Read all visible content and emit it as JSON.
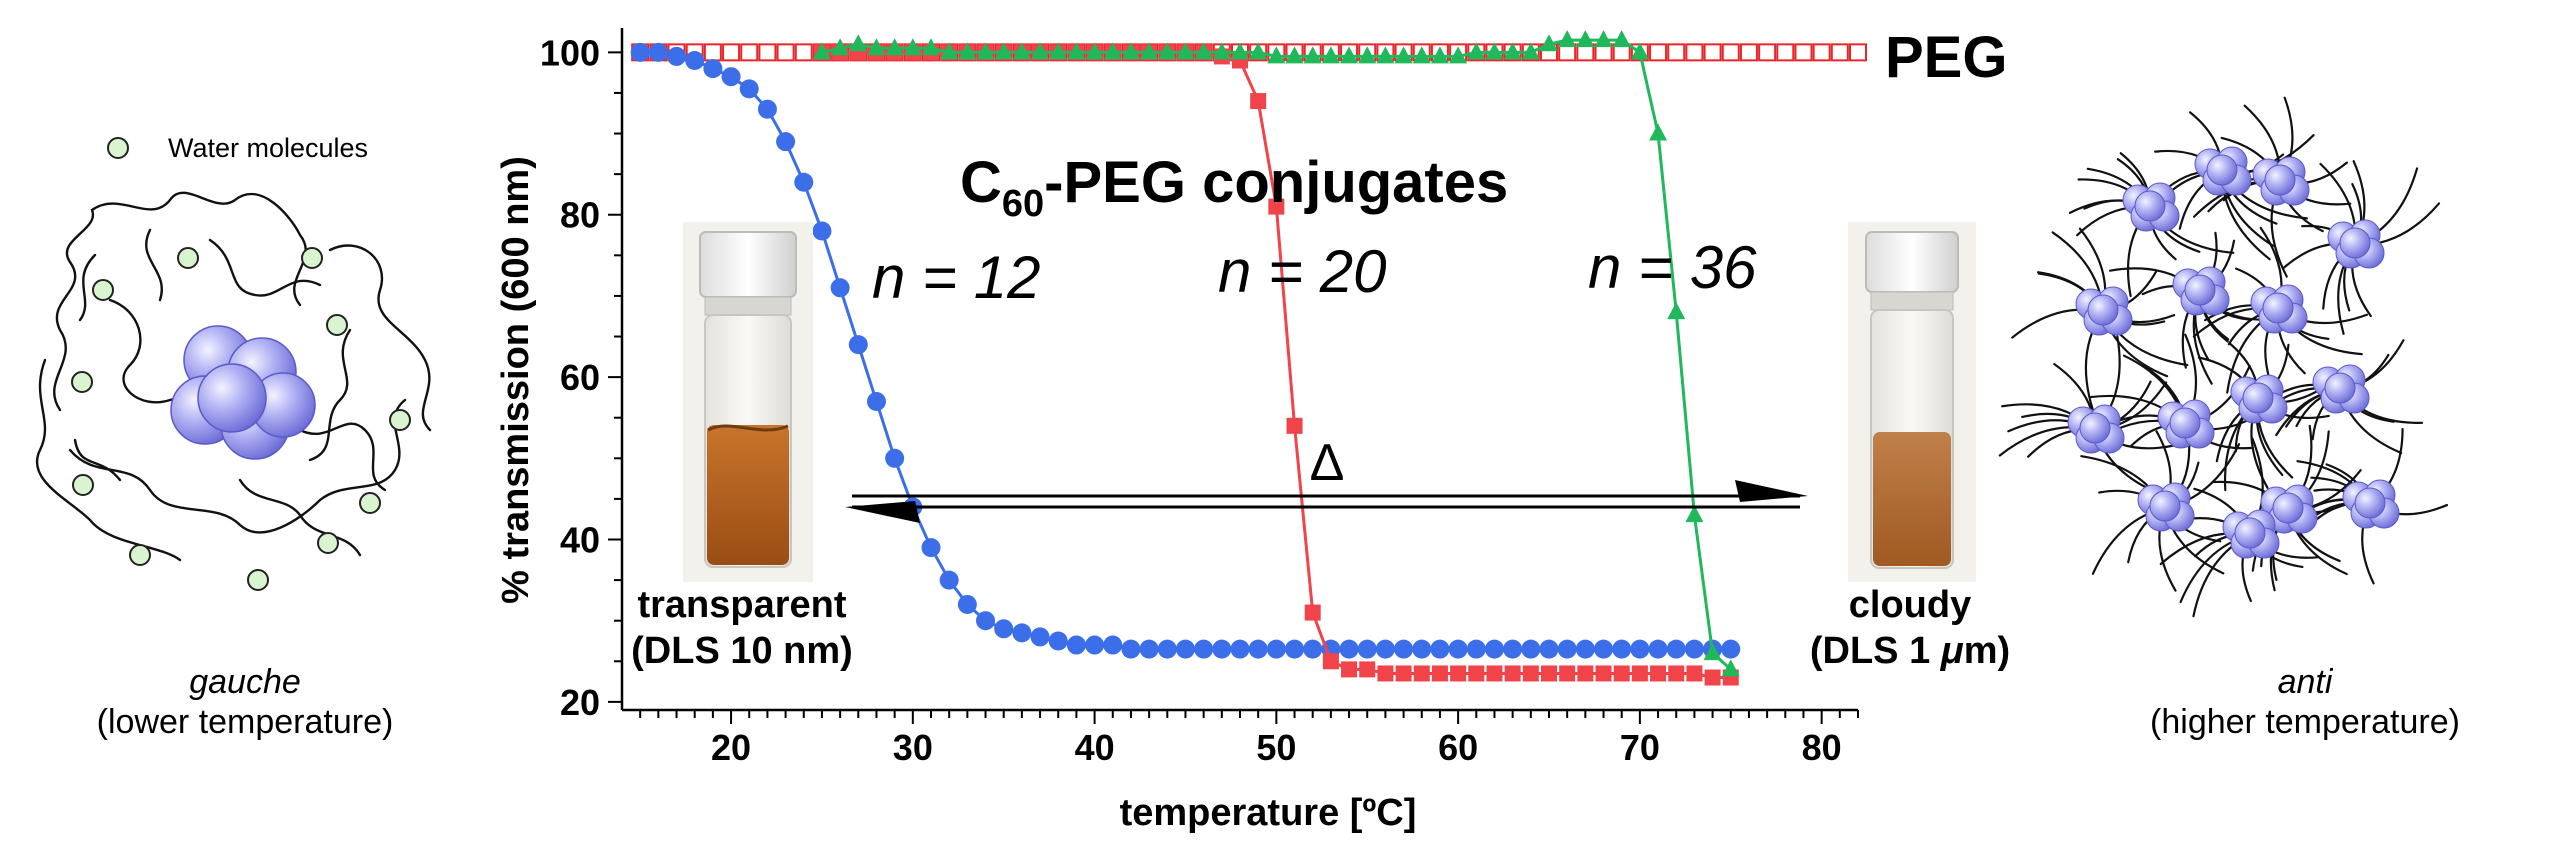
{
  "chart_data": {
    "type": "scatter",
    "xlabel": "temperature [ºC]",
    "ylabel": "% transmission (600 nm)",
    "xlim": [
      14,
      82
    ],
    "ylim": [
      19,
      103
    ],
    "xticks": [
      20,
      30,
      40,
      50,
      60,
      70,
      80
    ],
    "yticks": [
      20,
      40,
      60,
      80,
      100
    ],
    "grid": false,
    "annotations": {
      "peg": "PEG",
      "conjugates_main": "C",
      "conjugates_sub": "60",
      "conjugates_rest": "-PEG conjugates",
      "n12": "n = 12",
      "n20": "n = 20",
      "n36": "n = 36",
      "delta": "Δ",
      "transparent": "transparent",
      "transparent_dls": "(DLS 10 nm)",
      "cloudy": "cloudy",
      "cloudy_dls_prefix": "(DLS 1 ",
      "cloudy_dls_mu": "μ",
      "cloudy_dls_suffix": "m)"
    },
    "series": [
      {
        "marker": "open-square",
        "color": "#e8262a",
        "x": [
          15,
          16,
          17,
          18,
          19,
          20,
          21,
          22,
          23,
          24,
          25,
          26,
          27,
          28,
          29,
          30,
          31,
          32,
          33,
          34,
          35,
          36,
          37,
          38,
          39,
          40,
          41,
          42,
          43,
          44,
          45,
          46,
          47,
          48,
          49,
          50,
          51,
          52,
          53,
          54,
          55,
          56,
          57,
          58,
          59,
          60,
          61,
          62,
          63,
          64,
          65,
          66,
          67,
          68,
          69,
          70,
          71,
          72,
          73,
          74,
          75,
          76,
          77,
          78,
          79,
          80,
          81,
          82
        ],
        "y": [
          100,
          100,
          100,
          100,
          100,
          100,
          100,
          100,
          100,
          100,
          100,
          100,
          100,
          100,
          100,
          100,
          100,
          100,
          100,
          100,
          100,
          100,
          100,
          100,
          100,
          100,
          100,
          100,
          100,
          100,
          100,
          100,
          100,
          100,
          100,
          100,
          100,
          100,
          100,
          100,
          100,
          100,
          100,
          100,
          100,
          100,
          100,
          100,
          100,
          100,
          100,
          100,
          100,
          100,
          100,
          100,
          100,
          100,
          100,
          100,
          100,
          100,
          100,
          100,
          100,
          100,
          100,
          100
        ]
      },
      {
        "marker": "filled-circle",
        "color": "#3b6ee8",
        "x": [
          15,
          16,
          17,
          18,
          19,
          20,
          21,
          22,
          23,
          24,
          25,
          26,
          27,
          28,
          29,
          30,
          31,
          32,
          33,
          34,
          35,
          36,
          37,
          38,
          39,
          40,
          41,
          42,
          43,
          44,
          45,
          46,
          47,
          48,
          49,
          50,
          51,
          52,
          53,
          54,
          55,
          56,
          57,
          58,
          59,
          60,
          61,
          62,
          63,
          64,
          65,
          66,
          67,
          68,
          69,
          70,
          71,
          72,
          73,
          74,
          75
        ],
        "y": [
          100,
          100,
          99.5,
          99,
          98,
          97,
          95.5,
          93,
          89,
          84,
          78,
          71,
          64,
          57,
          50,
          44,
          39,
          35,
          32,
          30,
          29,
          28.5,
          28,
          27.5,
          27,
          27,
          27,
          26.5,
          26.5,
          26.5,
          26.5,
          26.5,
          26.5,
          26.5,
          26.5,
          26.5,
          26.5,
          26.5,
          26.5,
          26.5,
          26.5,
          26.5,
          26.5,
          26.5,
          26.5,
          26.5,
          26.5,
          26.5,
          26.5,
          26.5,
          26.5,
          26.5,
          26.5,
          26.5,
          26.5,
          26.5,
          26.5,
          26.5,
          26.5,
          26.5,
          26.5
        ]
      },
      {
        "marker": "filled-square",
        "color": "#f0434a",
        "x": [
          25,
          26,
          27,
          28,
          29,
          30,
          31,
          32,
          33,
          34,
          35,
          36,
          37,
          38,
          39,
          40,
          41,
          42,
          43,
          44,
          45,
          46,
          47,
          48,
          49,
          50,
          51,
          52,
          53,
          54,
          55,
          56,
          57,
          58,
          59,
          60,
          61,
          62,
          63,
          64,
          65,
          66,
          67,
          68,
          69,
          70,
          71,
          72,
          73,
          74,
          75
        ],
        "y": [
          100,
          100,
          100,
          100,
          100,
          100,
          100,
          100,
          100,
          100,
          100,
          100,
          100,
          100,
          100,
          100,
          100,
          100,
          100,
          100,
          100,
          100,
          99.5,
          99,
          94,
          81,
          54,
          31,
          25,
          24,
          24,
          23.5,
          23.5,
          23.5,
          23.5,
          23.5,
          23.5,
          23.5,
          23.5,
          23.5,
          23.5,
          23.5,
          23.5,
          23.5,
          23.5,
          23.5,
          23.5,
          23.5,
          23.5,
          23,
          23
        ]
      },
      {
        "marker": "filled-triangle",
        "color": "#1fb85a",
        "x": [
          25,
          26,
          27,
          28,
          29,
          30,
          31,
          32,
          33,
          34,
          35,
          36,
          37,
          38,
          39,
          40,
          41,
          42,
          43,
          44,
          45,
          46,
          47,
          48,
          49,
          50,
          51,
          52,
          53,
          54,
          55,
          56,
          57,
          58,
          59,
          60,
          61,
          62,
          63,
          64,
          65,
          66,
          67,
          68,
          69,
          70,
          71,
          72,
          73,
          74,
          75
        ],
        "y": [
          100,
          100.5,
          101,
          100.5,
          100.5,
          100.5,
          100.5,
          100,
          100,
          100,
          100,
          100,
          100,
          100,
          100,
          100,
          100,
          100,
          100,
          100,
          100,
          100,
          100,
          100,
          100,
          99.5,
          99.5,
          99.5,
          99.5,
          99.5,
          99.5,
          99.5,
          99.5,
          99.5,
          99.5,
          99.5,
          100,
          100,
          100,
          100,
          101,
          101.5,
          101.5,
          101.5,
          101.5,
          100,
          90,
          68,
          43,
          26,
          24
        ]
      }
    ]
  },
  "left_panel": {
    "legend_label": "Water molecules",
    "caption_italic": "gauche",
    "caption": "(lower temperature)"
  },
  "right_panel": {
    "caption_italic": "anti",
    "caption": "(higher temperature)"
  },
  "colors": {
    "fullerene": "#a9a9f0",
    "water": "#d9f5cf",
    "vial_liquid": "#b5631e"
  }
}
